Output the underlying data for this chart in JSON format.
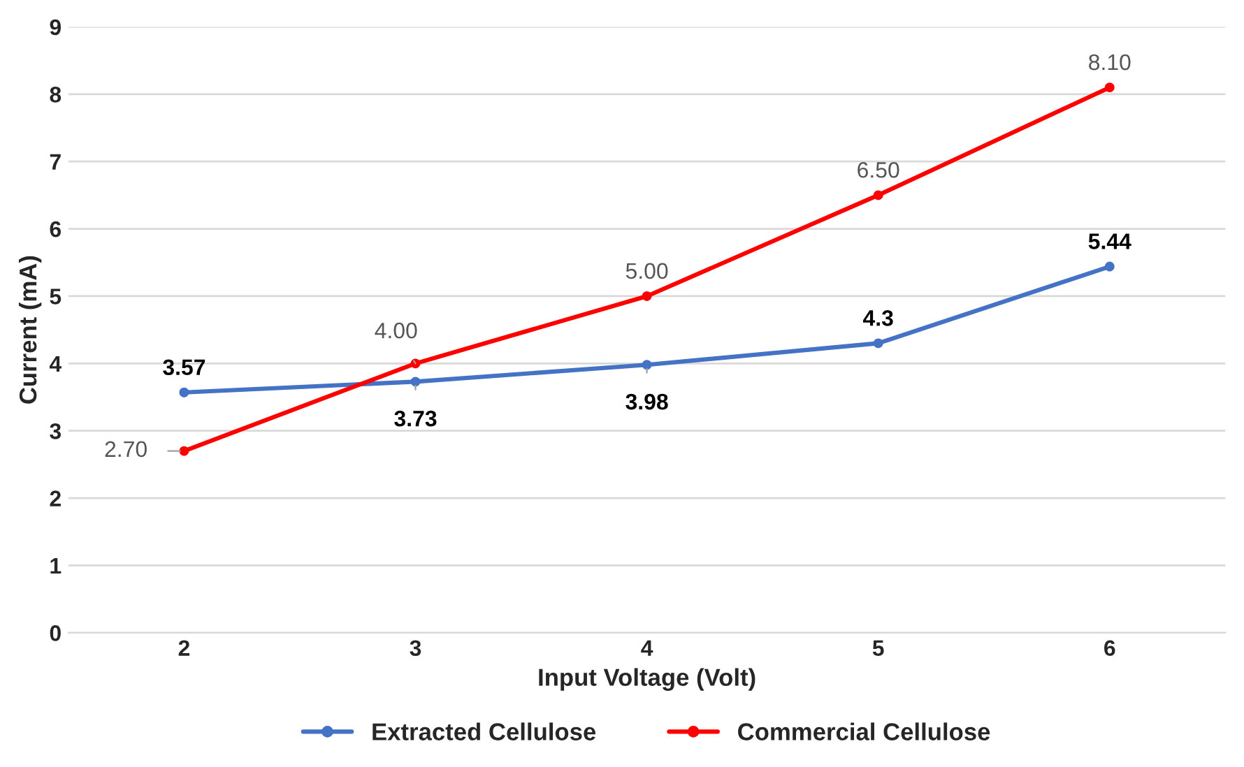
{
  "chart_data": {
    "type": "line",
    "xlabel": "Input Voltage (Volt)",
    "ylabel": "Current (mA)",
    "categories": [
      "2",
      "3",
      "4",
      "5",
      "6"
    ],
    "series": [
      {
        "name": "Extracted Cellulose",
        "color": "#4472c4",
        "values": [
          3.57,
          3.73,
          3.98,
          4.3,
          5.44
        ],
        "value_labels": [
          "3.57",
          "3.73",
          "3.98",
          "4.3",
          "5.44"
        ]
      },
      {
        "name": "Commercial Cellulose",
        "color": "#ff0000",
        "values": [
          2.7,
          4.0,
          5.0,
          6.5,
          8.1
        ],
        "value_labels": [
          "2.70",
          "4.00",
          "5.00",
          "6.50",
          "8.10"
        ]
      }
    ],
    "ylim": [
      0,
      9
    ],
    "yticks": [
      0,
      1,
      2,
      3,
      4,
      5,
      6,
      7,
      8,
      9
    ],
    "grid": "y",
    "legend": "bottom",
    "marker": "circle",
    "line_style": "solid"
  }
}
